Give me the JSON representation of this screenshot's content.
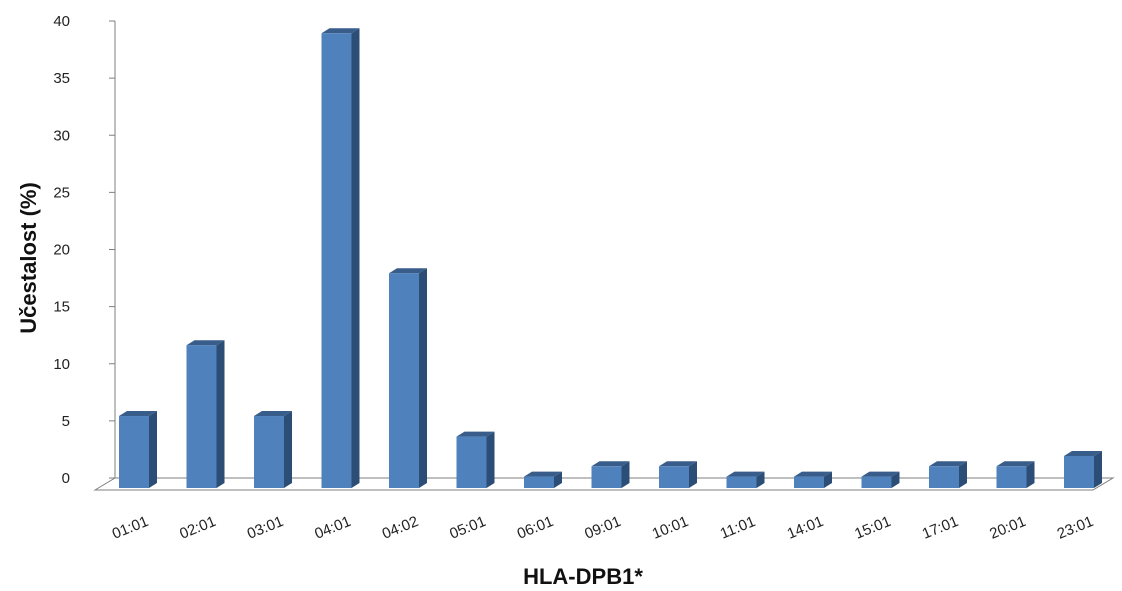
{
  "chart_data": {
    "type": "bar",
    "categories": [
      "01:01",
      "02:01",
      "03:01",
      "04:01",
      "04:02",
      "05:01",
      "06:01",
      "09:01",
      "10:01",
      "11:01",
      "14:01",
      "15:01",
      "17:01",
      "20:01",
      "23:01"
    ],
    "values": [
      6.3,
      12.5,
      6.3,
      39.8,
      18.8,
      4.5,
      1.0,
      1.9,
      1.9,
      1.0,
      1.0,
      1.0,
      1.9,
      1.9,
      2.8
    ],
    "xlabel": "HLA-DPB1*",
    "ylabel": "Učestalost (%)",
    "ylim": [
      0,
      40
    ],
    "yticks": [
      "0",
      "5",
      "10",
      "15",
      "20",
      "25",
      "30",
      "35",
      "40"
    ],
    "grid": false,
    "colors": {
      "bar_front": "#4F81BD",
      "bar_side": "#2C4D75",
      "bar_top": "#385D8A",
      "axis": "#7f7f7f"
    }
  }
}
